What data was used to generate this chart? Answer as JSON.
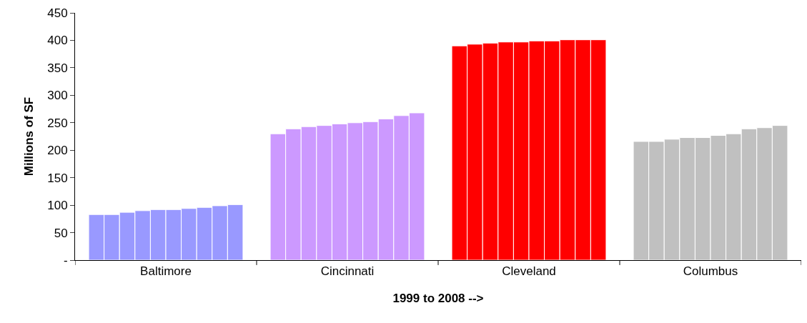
{
  "chart_data": {
    "type": "bar",
    "xlabel": "1999 to 2008 -->",
    "ylabel": "Millions of SF",
    "categories": [
      "Baltimore",
      "Cincinnati",
      "Cleveland",
      "Columbus"
    ],
    "series": [
      {
        "colors": [
          "#9999ff",
          "#cc99ff",
          "#ff0000",
          "#c0c0c0"
        ],
        "values": [
          83,
          230,
          390,
          216
        ]
      },
      {
        "colors": [
          "#9999ff",
          "#cc99ff",
          "#ff0000",
          "#c0c0c0"
        ],
        "values": [
          83,
          239,
          393,
          216
        ]
      },
      {
        "colors": [
          "#9999ff",
          "#cc99ff",
          "#ff0000",
          "#c0c0c0"
        ],
        "values": [
          87,
          243,
          395,
          220
        ]
      },
      {
        "colors": [
          "#9999ff",
          "#cc99ff",
          "#ff0000",
          "#c0c0c0"
        ],
        "values": [
          90,
          245,
          397,
          223
        ]
      },
      {
        "colors": [
          "#9999ff",
          "#cc99ff",
          "#ff0000",
          "#c0c0c0"
        ],
        "values": [
          92,
          248,
          397,
          223
        ]
      },
      {
        "colors": [
          "#9999ff",
          "#cc99ff",
          "#ff0000",
          "#c0c0c0"
        ],
        "values": [
          92,
          250,
          399,
          227
        ]
      },
      {
        "colors": [
          "#9999ff",
          "#cc99ff",
          "#ff0000",
          "#c0c0c0"
        ],
        "values": [
          94,
          252,
          399,
          230
        ]
      },
      {
        "colors": [
          "#9999ff",
          "#cc99ff",
          "#ff0000",
          "#c0c0c0"
        ],
        "values": [
          96,
          257,
          401,
          239
        ]
      },
      {
        "colors": [
          "#9999ff",
          "#cc99ff",
          "#ff0000",
          "#c0c0c0"
        ],
        "values": [
          99,
          263,
          401,
          241
        ]
      },
      {
        "colors": [
          "#9999ff",
          "#cc99ff",
          "#ff0000",
          "#c0c0c0"
        ],
        "values": [
          101,
          268,
          401,
          245
        ]
      }
    ],
    "ylim": [
      0,
      450
    ],
    "yticks": [
      {
        "value": 0,
        "label": "-"
      },
      50,
      100,
      150,
      200,
      250,
      300,
      350,
      400,
      450
    ]
  }
}
